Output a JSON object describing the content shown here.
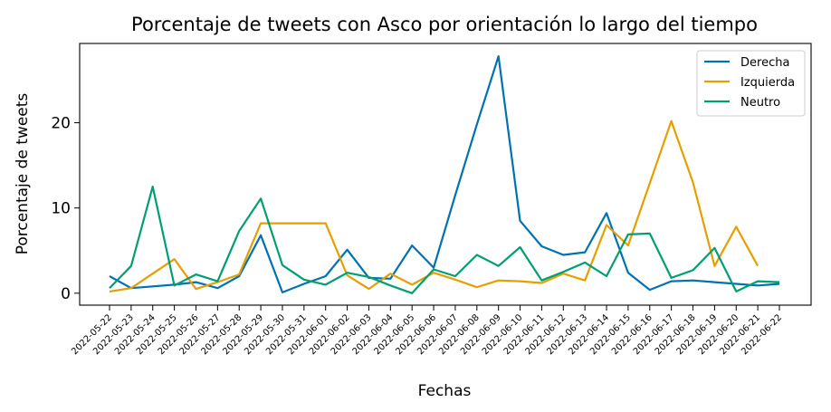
{
  "chart_data": {
    "type": "line",
    "title": "Porcentaje de tweets con Asco por orientación lo largo del tiempo",
    "xlabel": "Fechas",
    "ylabel": "Porcentaje de tweets",
    "ylim": [
      -1.4,
      29.3
    ],
    "yticks": [
      0,
      10,
      20
    ],
    "grid": false,
    "legend_position": "top-right",
    "categories": [
      "2022-05-22",
      "2022-05-23",
      "2022-05-24",
      "2022-05-25",
      "2022-05-26",
      "2022-05-27",
      "2022-05-28",
      "2022-05-29",
      "2022-05-30",
      "2022-05-31",
      "2022-06-01",
      "2022-06-02",
      "2022-06-03",
      "2022-06-04",
      "2022-06-05",
      "2022-06-06",
      "2022-06-07",
      "2022-06-08",
      "2022-06-09",
      "2022-06-10",
      "2022-06-11",
      "2022-06-12",
      "2022-06-13",
      "2022-06-14",
      "2022-06-15",
      "2022-06-16",
      "2022-06-17",
      "2022-06-18",
      "2022-06-19",
      "2022-06-20",
      "2022-06-21",
      "2022-06-22"
    ],
    "series": [
      {
        "name": "Derecha",
        "color": "#0072b2",
        "values": [
          2.0,
          0.6,
          0.8,
          1.0,
          1.3,
          0.6,
          2.0,
          6.8,
          0.1,
          1.1,
          2.0,
          5.1,
          1.8,
          1.7,
          5.6,
          3.0,
          11.5,
          19.8,
          27.8,
          8.5,
          5.5,
          4.5,
          4.8,
          9.4,
          2.4,
          0.4,
          1.4,
          1.5,
          1.3,
          1.1,
          0.9,
          1.1
        ]
      },
      {
        "name": "Izquierda",
        "color": "#e69f00",
        "values": [
          0.2,
          0.6,
          2.3,
          4.0,
          0.5,
          1.3,
          2.2,
          8.2,
          8.2,
          8.2,
          8.2,
          2.1,
          0.5,
          2.3,
          1.0,
          2.4,
          1.6,
          0.7,
          1.5,
          1.4,
          1.2,
          2.3,
          1.5,
          8.0,
          5.6,
          12.9,
          20.2,
          13.0,
          3.2,
          7.8,
          3.2,
          null
        ]
      },
      {
        "name": "Neutro",
        "color": "#009e73",
        "values": [
          0.6,
          3.2,
          12.5,
          0.9,
          2.2,
          1.4,
          7.3,
          11.1,
          3.3,
          1.6,
          1.0,
          2.4,
          1.9,
          0.9,
          0.0,
          2.8,
          2.0,
          4.5,
          3.2,
          5.4,
          1.5,
          2.5,
          3.6,
          2.0,
          6.9,
          7.0,
          1.8,
          2.7,
          5.3,
          0.2,
          1.4,
          1.3
        ]
      }
    ]
  }
}
